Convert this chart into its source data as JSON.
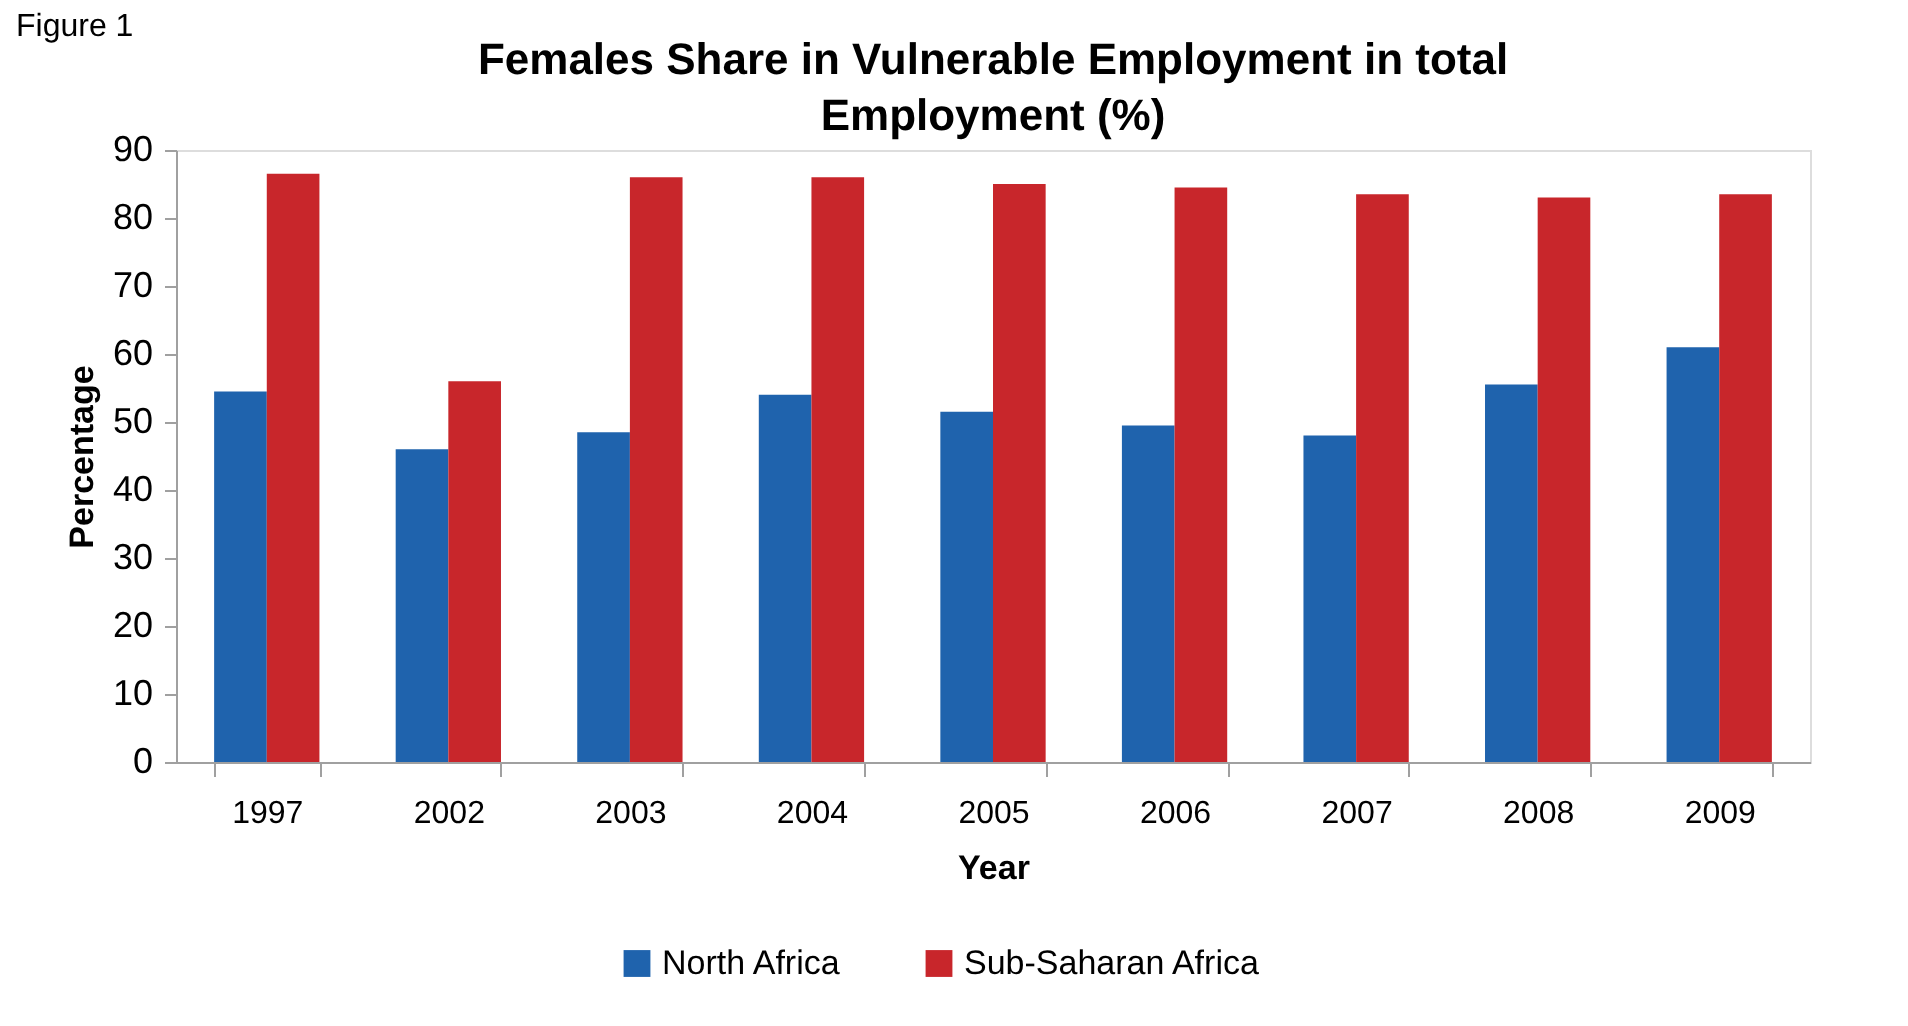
{
  "chart_data": {
    "type": "bar",
    "title": "Females Share in Vulnerable Employment in total Employment (%)",
    "xlabel": "Year",
    "ylabel": "Percentage",
    "categories": [
      "1997",
      "2002",
      "2003",
      "2004",
      "2005",
      "2006",
      "2007",
      "2008",
      "2009"
    ],
    "series": [
      {
        "name": "North Africa",
        "color": "#1f63ad",
        "values": [
          54.5,
          46,
          48.5,
          54,
          51.5,
          49.5,
          48,
          55.5,
          61
        ]
      },
      {
        "name": "Sub-Saharan Africa",
        "color": "#c8262b",
        "values": [
          86.5,
          56,
          86,
          86,
          85,
          84.5,
          83.5,
          83,
          83.5
        ]
      }
    ],
    "ylim": [
      0,
      90
    ],
    "yticks": [
      0,
      10,
      20,
      30,
      40,
      50,
      60,
      70,
      80,
      90
    ],
    "legend": "bottom",
    "annotations": [
      "Figure 1"
    ]
  }
}
